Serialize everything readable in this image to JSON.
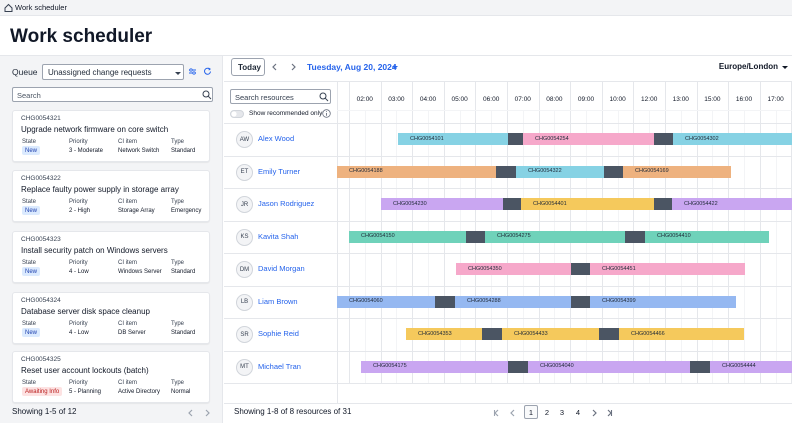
{
  "breadcrumb": "Work scheduler",
  "header": {
    "title": "Work scheduler"
  },
  "queue": {
    "label": "Queue",
    "selected": "Unassigned change requests",
    "search_placeholder": "Search",
    "field_labels": [
      "State",
      "Priority",
      "CI item",
      "Type"
    ],
    "cards": [
      {
        "number": "CHG0054321",
        "title": "Upgrade network firmware on core switch",
        "state": "New",
        "priority": "3 - Moderate",
        "ci_item": "Network Switch",
        "type": "Standard"
      },
      {
        "number": "CHG0054322",
        "title": "Replace faulty power supply in storage array",
        "state": "New",
        "priority": "2 - High",
        "ci_item": "Storage Array",
        "type": "Emergency"
      },
      {
        "number": "CHG0054323",
        "title": "Install security patch on Windows servers",
        "state": "New",
        "priority": "4 - Low",
        "ci_item": "Windows Server",
        "type": "Standard"
      },
      {
        "number": "CHG0054324",
        "title": "Database server disk space cleanup",
        "state": "New",
        "priority": "4 - Low",
        "ci_item": "DB Server",
        "type": "Standard"
      },
      {
        "number": "CHG0054325",
        "title": "Reset user account lockouts (batch)",
        "state": "Awaiting Info",
        "priority": "5 - Planning",
        "ci_item": "Active Directory",
        "type": "Normal"
      }
    ],
    "footer": "Showing 1-5 of 12"
  },
  "scheduler": {
    "today": "Today",
    "date": "Tuesday, Aug 20, 2024",
    "timezone": "Europe/London",
    "search_placeholder": "Search resources",
    "recommended_toggle": "Show recommended only",
    "hours": [
      "02:00",
      "03:00",
      "04:00",
      "05:00",
      "06:00",
      "07:00",
      "08:00",
      "09:00",
      "10:00",
      "12:00",
      "13:00",
      "15:00",
      "16:00",
      "17:00"
    ],
    "resources": [
      {
        "initials": "AW",
        "name": "Alex Wood",
        "tasks": [
          "CHG0054101",
          "CHG0054254",
          "CHG0054302"
        ]
      },
      {
        "initials": "ET",
        "name": "Emily Turner",
        "tasks": [
          "CHG0054188",
          "CHG0054322",
          "CHG0054169"
        ]
      },
      {
        "initials": "JR",
        "name": "Jason Rodriguez",
        "tasks": [
          "CHG0054230",
          "CHG0054401",
          "CHG0054422"
        ]
      },
      {
        "initials": "KS",
        "name": "Kavita Shah",
        "tasks": [
          "CHG0054150",
          "CHG0054275",
          "CHG0054410"
        ]
      },
      {
        "initials": "DM",
        "name": "David Morgan",
        "tasks": [
          "CHG0054350",
          "CHG0054451"
        ]
      },
      {
        "initials": "LB",
        "name": "Liam Brown",
        "tasks": [
          "CHG0054060",
          "CHG0054288",
          "CHG0054399"
        ]
      },
      {
        "initials": "SR",
        "name": "Sophie Reid",
        "tasks": [
          "CHG0054353",
          "CHG0054433",
          "CHG0054466"
        ]
      },
      {
        "initials": "MT",
        "name": "Michael Tran",
        "tasks": [
          "CHG0054175",
          "CHG0054040",
          "CHG0054444"
        ]
      }
    ],
    "footer": "Showing 1-8 of 8 resources of 31",
    "pages": [
      "1",
      "2",
      "3",
      "4"
    ]
  }
}
